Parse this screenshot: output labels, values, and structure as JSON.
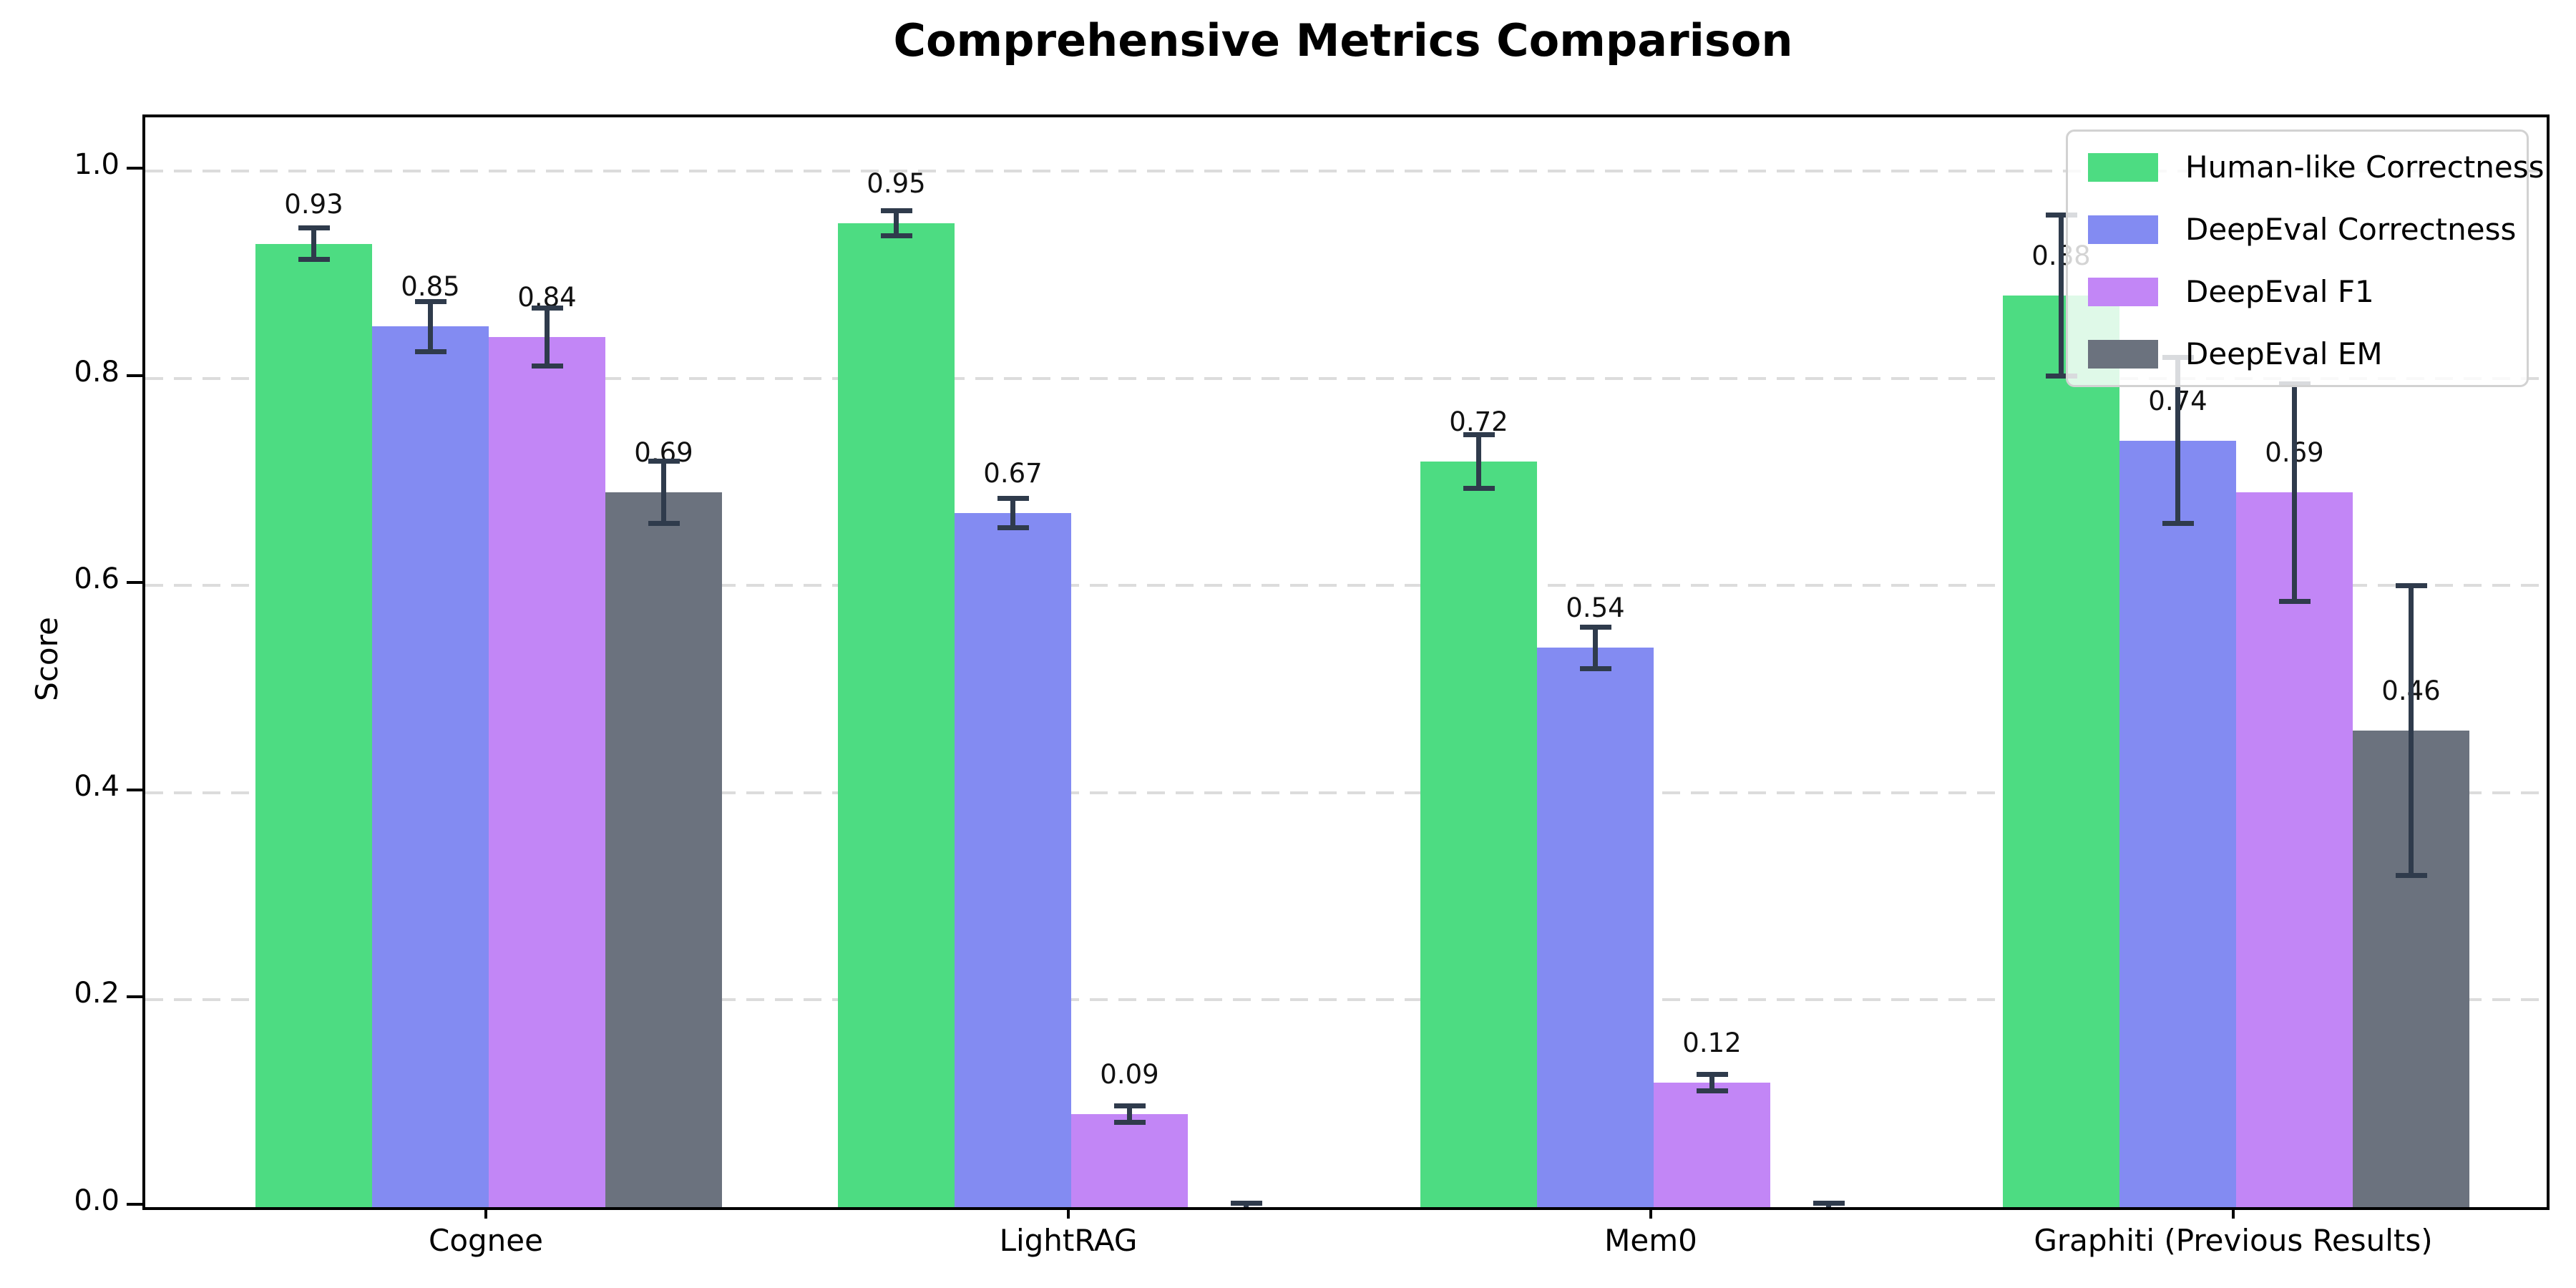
{
  "chart_data": {
    "type": "bar",
    "title": "Comprehensive Metrics Comparison",
    "xlabel": "",
    "ylabel": "Score",
    "categories": [
      "Cognee",
      "LightRAG",
      "Mem0",
      "Graphiti (Previous Results)"
    ],
    "series": [
      {
        "name": "Human-like Correctness",
        "color": "#4ddc82",
        "values": [
          0.93,
          0.95,
          0.72,
          0.88
        ],
        "errors": [
          0.015,
          0.012,
          0.026,
          0.078
        ],
        "labels": [
          "0.93",
          "0.95",
          "0.72",
          "0.88"
        ]
      },
      {
        "name": "DeepEval Correctness",
        "color": "#838bf2",
        "values": [
          0.85,
          0.67,
          0.54,
          0.74
        ],
        "errors": [
          0.024,
          0.014,
          0.02,
          0.08
        ],
        "labels": [
          "0.85",
          "0.67",
          "0.54",
          "0.74"
        ]
      },
      {
        "name": "DeepEval F1",
        "color": "#c286f6",
        "values": [
          0.84,
          0.09,
          0.12,
          0.69
        ],
        "errors": [
          0.028,
          0.008,
          0.008,
          0.105
        ],
        "labels": [
          "0.84",
          "0.09",
          "0.12",
          "0.69"
        ]
      },
      {
        "name": "DeepEval EM",
        "color": "#6b727e",
        "values": [
          0.69,
          0.0,
          0.0,
          0.46
        ],
        "errors": [
          0.03,
          0.004,
          0.004,
          0.14
        ],
        "labels": [
          "0.69",
          "",
          "",
          "0.46"
        ]
      }
    ],
    "yticks": [
      "0.0",
      "0.2",
      "0.4",
      "0.6",
      "0.8",
      "1.0"
    ],
    "ylim": [
      0,
      1.052
    ],
    "grid": "horizontal-dashed",
    "legend_position": "upper-right"
  },
  "style": {
    "error_bar_color": "#2f3b4c",
    "grid_color": "#dcdcdc",
    "axis_color": "#000000",
    "value_label_color": "#111111",
    "legend_border_color": "#d2d2d2",
    "background": "#ffffff"
  }
}
